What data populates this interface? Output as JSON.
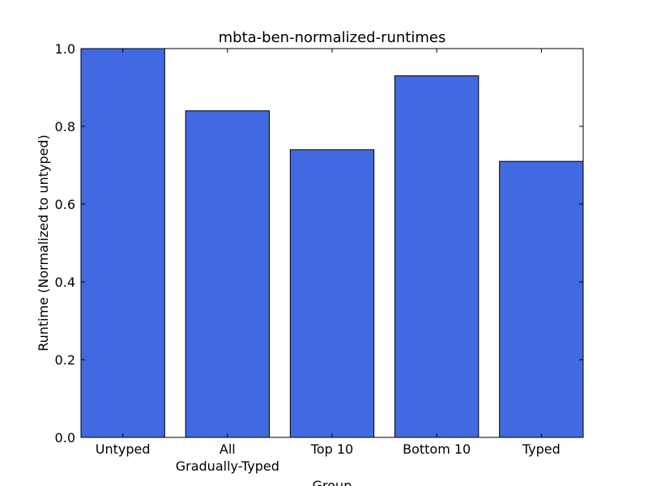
{
  "chart_data": {
    "type": "bar",
    "title": "mbta-ben-normalized-runtimes",
    "xlabel": "Group",
    "ylabel": "Runtime (Normalized to untyped)",
    "categories": [
      [
        "Untyped"
      ],
      [
        "All",
        "Gradually-Typed"
      ],
      [
        "Top 10"
      ],
      [
        "Bottom 10"
      ],
      [
        "Typed"
      ]
    ],
    "values": [
      1.0,
      0.84,
      0.74,
      0.93,
      0.71
    ],
    "ylim": [
      0,
      1.0
    ],
    "yticks": [
      "0.0",
      "0.2",
      "0.4",
      "0.6",
      "0.8",
      "1.0"
    ],
    "yticks_values": [
      0.0,
      0.2,
      0.4,
      0.6,
      0.8,
      1.0
    ],
    "grid": false,
    "bar_color": "#4169e1",
    "edge_color": "#000000"
  }
}
